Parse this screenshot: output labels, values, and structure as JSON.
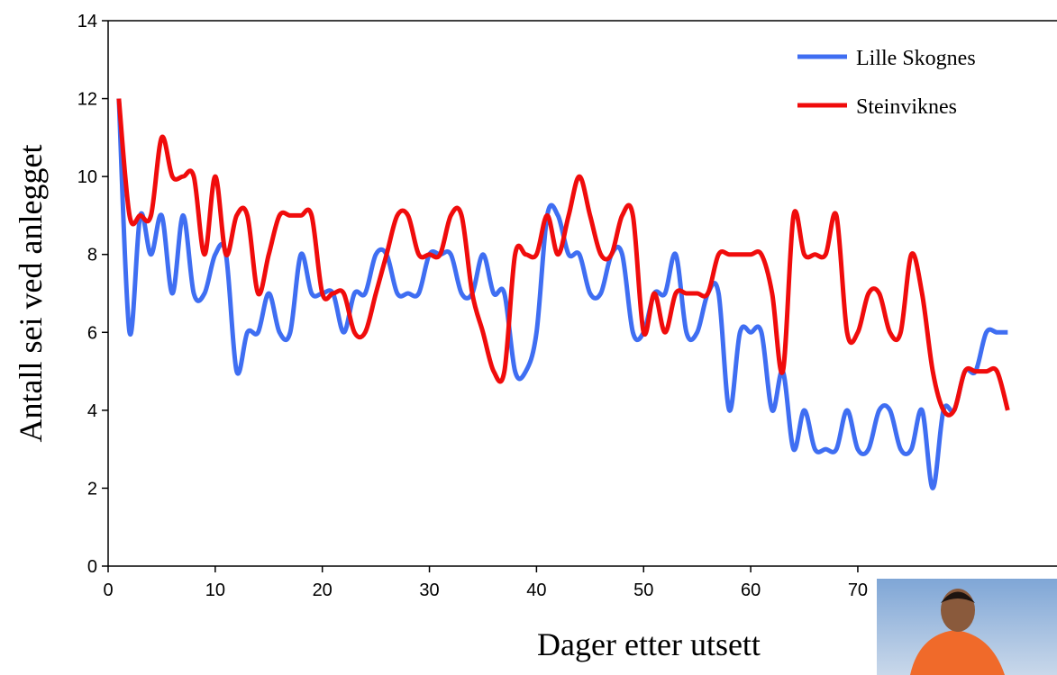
{
  "chart_data": {
    "type": "line",
    "x_label": "Dager etter utsett",
    "y_label": "Antall sei ved anlegget",
    "x": [
      1,
      2,
      3,
      4,
      5,
      6,
      7,
      8,
      9,
      10,
      11,
      12,
      13,
      14,
      15,
      16,
      17,
      18,
      19,
      20,
      21,
      22,
      23,
      24,
      25,
      26,
      27,
      28,
      29,
      30,
      31,
      32,
      33,
      34,
      35,
      36,
      37,
      38,
      39,
      40,
      41,
      42,
      43,
      44,
      45,
      46,
      47,
      48,
      49,
      50,
      51,
      52,
      53,
      54,
      55,
      56,
      57,
      58,
      59,
      60,
      61,
      62,
      63,
      64,
      65,
      66,
      67,
      68,
      69,
      70,
      71,
      72,
      73,
      74,
      75,
      76,
      77,
      78,
      79,
      80,
      81,
      82,
      83,
      84
    ],
    "series": [
      {
        "name": "Lille Skognes",
        "color": "#3f6ef2",
        "values": [
          12,
          6,
          9,
          8,
          9,
          7,
          9,
          7,
          7,
          8,
          8,
          5,
          6,
          6,
          7,
          6,
          6,
          8,
          7,
          7,
          7,
          6,
          7,
          7,
          8,
          8,
          7,
          7,
          7,
          8,
          8,
          8,
          7,
          7,
          8,
          7,
          7,
          5,
          5,
          6,
          9,
          9,
          8,
          8,
          7,
          7,
          8,
          8,
          6,
          6,
          7,
          7,
          8,
          6,
          6,
          7,
          7,
          4,
          6,
          6,
          6,
          4,
          5,
          3,
          4,
          3,
          3,
          3,
          4,
          3,
          3,
          4,
          4,
          3,
          3,
          4,
          2,
          4,
          4,
          5,
          5,
          6,
          6,
          6
        ]
      },
      {
        "name": "Steinviknes",
        "color": "#f00c0c",
        "values": [
          12,
          9,
          9,
          9,
          11,
          10,
          10,
          10,
          8,
          10,
          8,
          9,
          9,
          7,
          8,
          9,
          9,
          9,
          9,
          7,
          7,
          7,
          6,
          6,
          7,
          8,
          9,
          9,
          8,
          8,
          8,
          9,
          9,
          7,
          6,
          5,
          5,
          8,
          8,
          8,
          9,
          8,
          9,
          10,
          9,
          8,
          8,
          9,
          9,
          6,
          7,
          6,
          7,
          7,
          7,
          7,
          8,
          8,
          8,
          8,
          8,
          7,
          5,
          9,
          8,
          8,
          8,
          9,
          6,
          6,
          7,
          7,
          6,
          6,
          8,
          7,
          5,
          4,
          4,
          5,
          5,
          5,
          5,
          4
        ]
      }
    ],
    "xlim": [
      0,
      88.6
    ],
    "xticks": [
      0,
      10,
      20,
      30,
      40,
      50,
      60,
      70
    ],
    "ylim": [
      0,
      14
    ],
    "yticks": [
      0,
      2,
      4,
      6,
      8,
      10,
      12,
      14
    ],
    "grid": false,
    "legend": "upper right"
  }
}
